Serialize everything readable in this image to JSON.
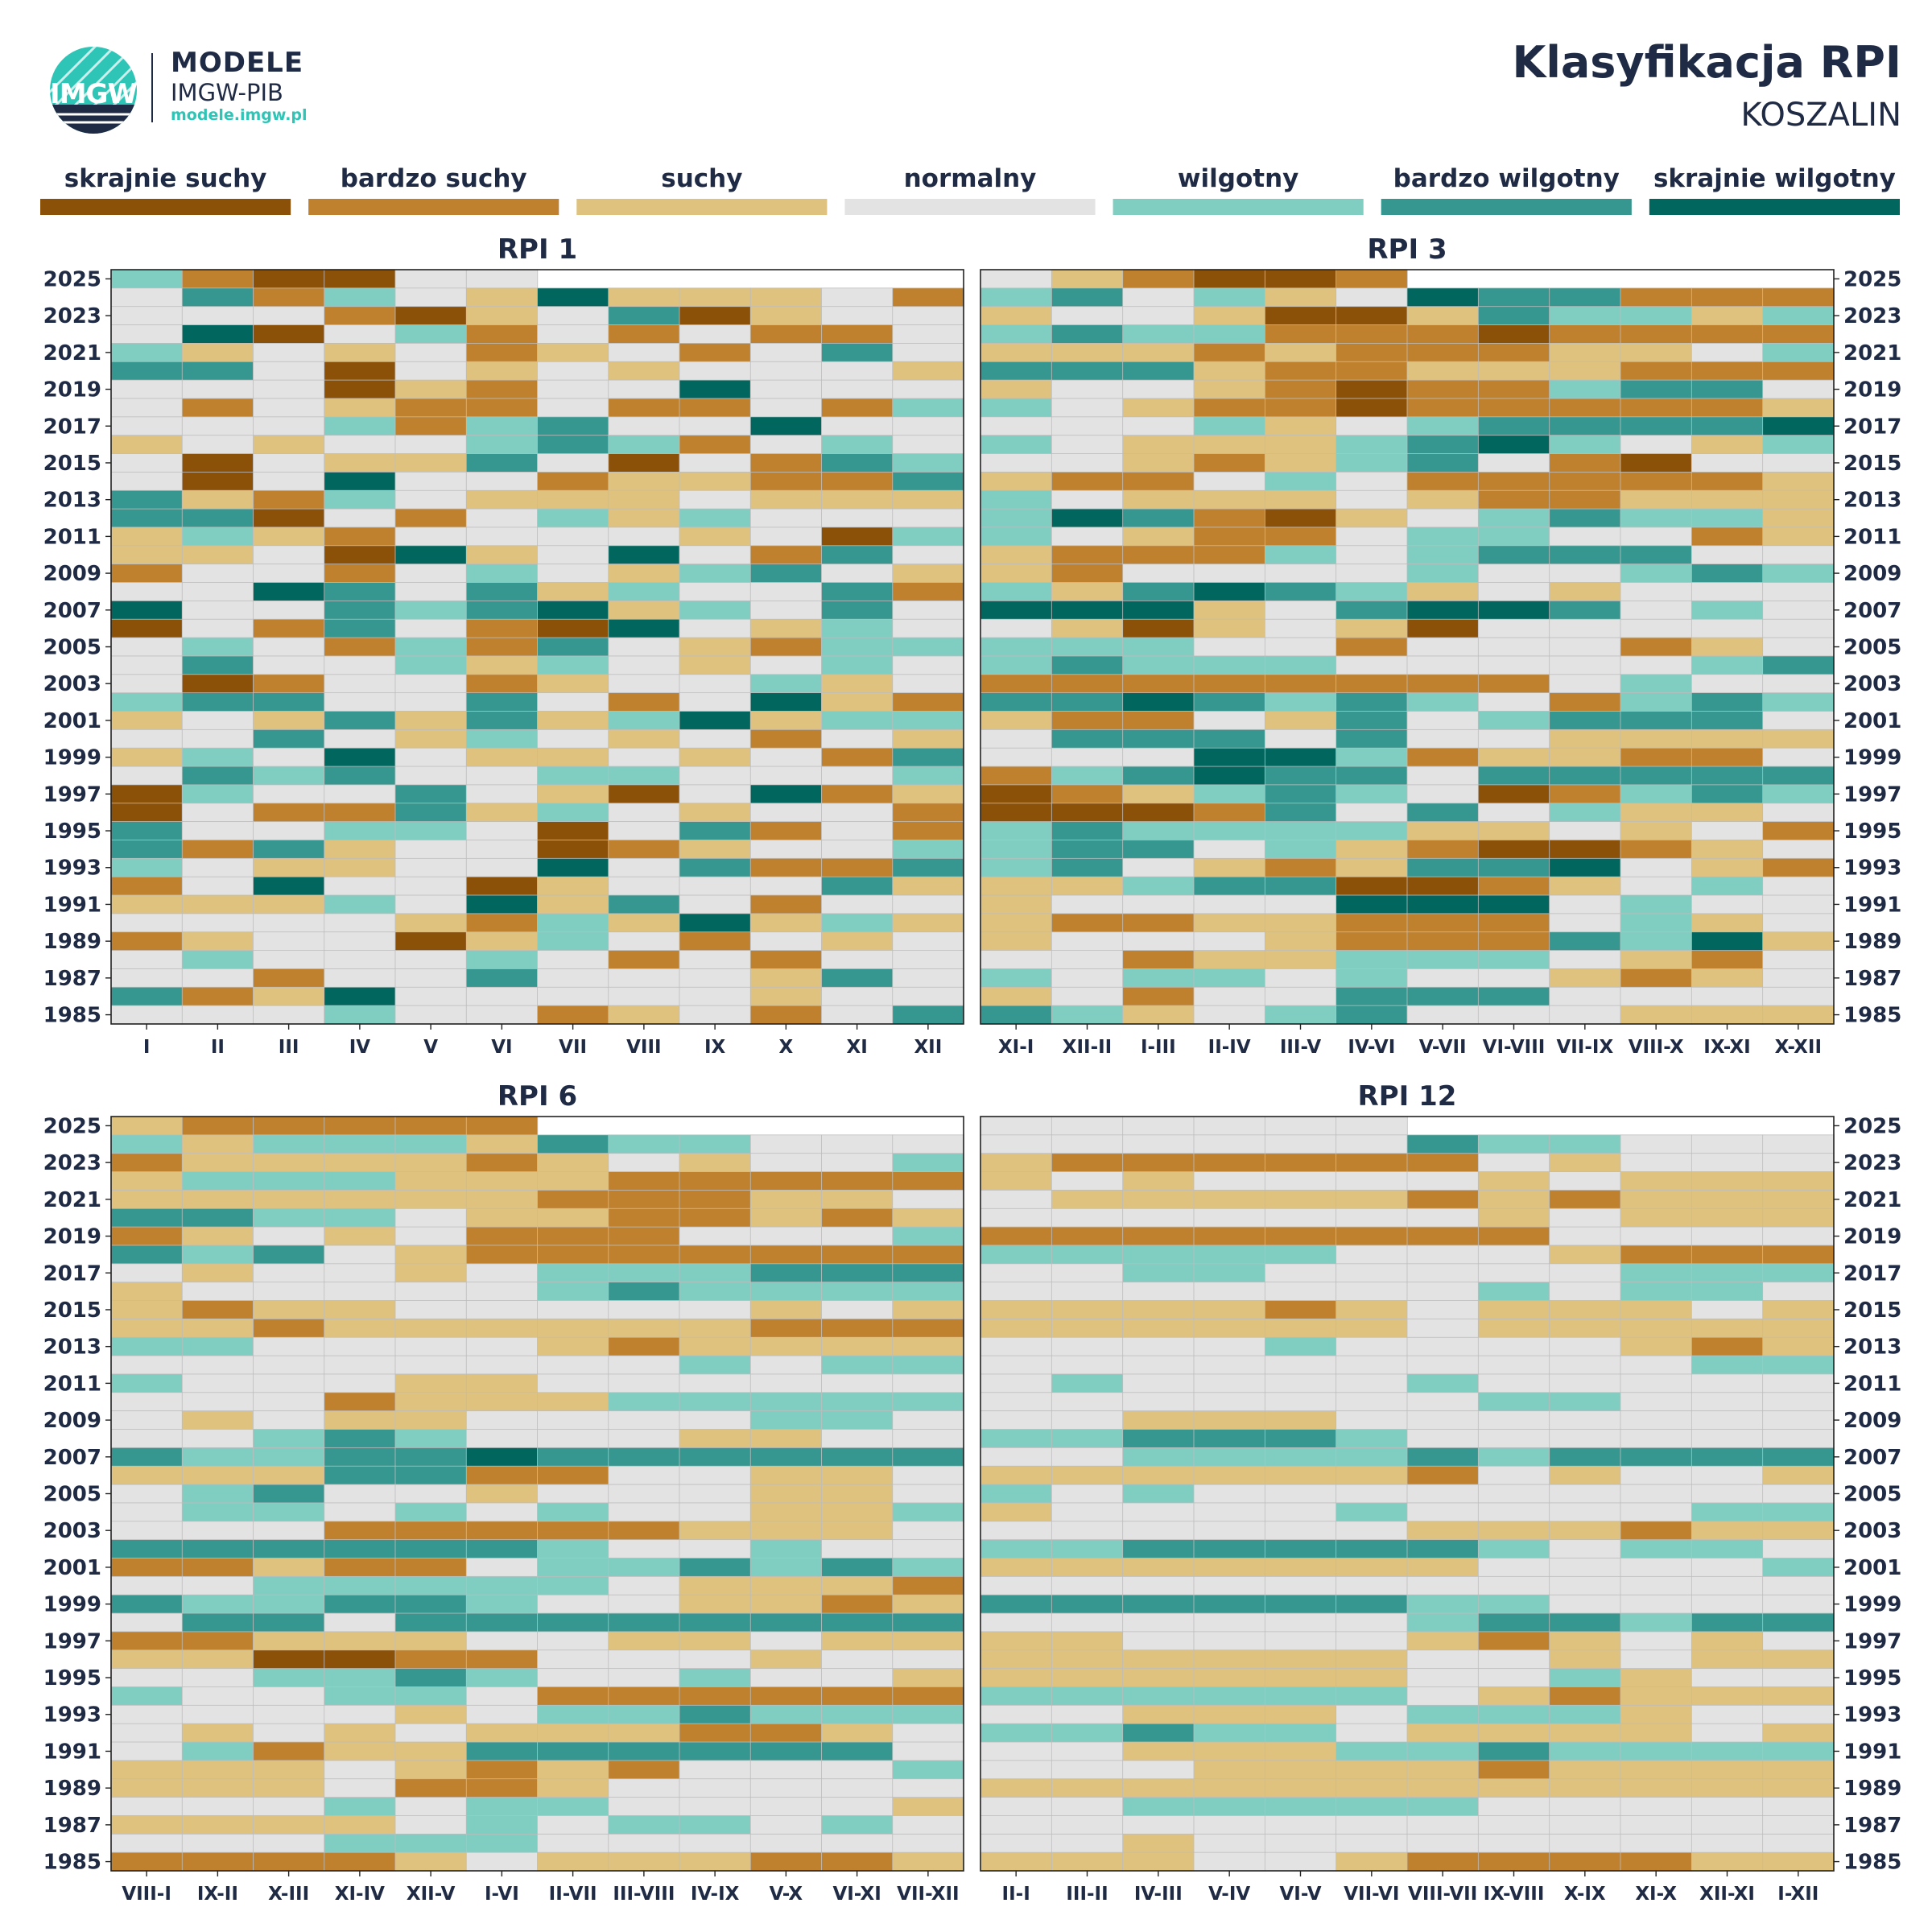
{
  "header": {
    "brand_title": "MODELE",
    "brand_subtitle": "IMGW-PIB",
    "brand_url": "modele.imgw.pl",
    "logo_text": "IMGW",
    "title": "Klasyfikacja RPI",
    "subtitle": "KOSZALIN"
  },
  "colors": {
    "text": "#1f2a44",
    "accent": "#2ec4b6",
    "grid": "#bdbdbd",
    "border": "#222222"
  },
  "legend": [
    {
      "code": "ES",
      "label": "skrajnie suchy",
      "color": "#8c5109"
    },
    {
      "code": "VS",
      "label": "bardzo suchy",
      "color": "#bf812d"
    },
    {
      "code": "S",
      "label": "suchy",
      "color": "#dfc27d"
    },
    {
      "code": "N",
      "label": "normalny",
      "color": "#e3e3e3"
    },
    {
      "code": "W",
      "label": "wilgotny",
      "color": "#80cdc1"
    },
    {
      "code": "VW",
      "label": "bardzo wilgotny",
      "color": "#35978f"
    },
    {
      "code": "EW",
      "label": "skrajnie wilgotny",
      "color": "#01665e"
    }
  ],
  "chart_data": [
    {
      "type": "heatmap",
      "title": "RPI 1",
      "years": [
        2025,
        2024,
        2023,
        2022,
        2021,
        2020,
        2019,
        2018,
        2017,
        2016,
        2015,
        2014,
        2013,
        2012,
        2011,
        2010,
        2009,
        2008,
        2007,
        2006,
        2005,
        2004,
        2003,
        2002,
        2001,
        2000,
        1999,
        1998,
        1997,
        1996,
        1995,
        1994,
        1993,
        1992,
        1991,
        1990,
        1989,
        1988,
        1987,
        1986,
        1985
      ],
      "year_labels": [
        2025,
        2023,
        2021,
        2019,
        2017,
        2015,
        2013,
        2011,
        2009,
        2007,
        2005,
        2003,
        2001,
        1999,
        1997,
        1995,
        1993,
        1991,
        1989,
        1987,
        1985
      ],
      "columns": [
        "I",
        "II",
        "III",
        "IV",
        "V",
        "VI",
        "VII",
        "VIII",
        "IX",
        "X",
        "XI",
        "XII"
      ],
      "y_axis_side": "left",
      "values": [
        "W VS ES ES N N - - - - - -",
        "N VW VS W N S EW S S S N VS",
        "N N N VS ES S N VW ES S N N",
        "N EW ES N W VS N VS N VS VS N",
        "W S N S N VS S N VS N VW N",
        "VW VW N ES N S N S N N N S",
        "N N N ES S VS N N EW N N N",
        "N VS N S VS VS N VS VS N VS W",
        "N N N W VS W VW N N EW N N",
        "S N S N N W VW W VS N W N",
        "N ES N S S VW N ES N VS VW W",
        "N ES N EW N N VS S S VS VS VW",
        "VW S VS W N S S S N S S S",
        "VW VW ES N VS N W S W N N N",
        "S W S VS N N N N S N ES W",
        "S S N ES EW S N EW N VS VW N",
        "VS N N VS N W N S W VW N S",
        "N N EW VW N VW S W N N VW VS",
        "EW N N VW W VW EW S W N VW N",
        "ES N VS VW N VS ES EW N S W N",
        "N W N VS W VS VW N S VS W W",
        "N VW N N W S W N S N W N",
        "N ES VS N N VS S N N W S N",
        "W VW VW N N VW N VS N EW S VS",
        "S N S VW S VW S W EW S W W",
        "N N VW N S W N S N VS N S",
        "S W N EW N S S N S N VS VW",
        "N VW W VW N N W W N N N W",
        "ES W N N VW N S ES N EW VS S",
        "ES N VS VS VW S W N S N N VS",
        "VW N N W W N ES N VW VS N VS",
        "VW VS VW S N N ES VS S N N W",
        "W N S S N N EW N VW VS VS VW",
        "VS N EW N N ES S N N N VW S",
        "S S S W N EW S VW N VS N N",
        "N N N N S VS W S EW S W S",
        "VS S N N ES S W N VS N S N",
        "N W N N N W N VS N VS N N",
        "N N VS N N VW N N N S VW N",
        "VW VS S EW N N N N N S N N",
        "N N N W N N VS S N VS N VW"
      ]
    },
    {
      "type": "heatmap",
      "title": "RPI 3",
      "years": [
        2025,
        2024,
        2023,
        2022,
        2021,
        2020,
        2019,
        2018,
        2017,
        2016,
        2015,
        2014,
        2013,
        2012,
        2011,
        2010,
        2009,
        2008,
        2007,
        2006,
        2005,
        2004,
        2003,
        2002,
        2001,
        2000,
        1999,
        1998,
        1997,
        1996,
        1995,
        1994,
        1993,
        1992,
        1991,
        1990,
        1989,
        1988,
        1987,
        1986,
        1985
      ],
      "year_labels": [
        2025,
        2023,
        2021,
        2019,
        2017,
        2015,
        2013,
        2011,
        2009,
        2007,
        2005,
        2003,
        2001,
        1999,
        1997,
        1995,
        1993,
        1991,
        1989,
        1987,
        1985
      ],
      "columns": [
        "XI-I",
        "XII-II",
        "I-III",
        "II-IV",
        "III-V",
        "IV-VI",
        "V-VII",
        "VI-VIII",
        "VII-IX",
        "VIII-X",
        "IX-XI",
        "X-XII"
      ],
      "y_axis_side": "right",
      "values": [
        "N S VS ES ES VS - - - - - -",
        "W VW N W S N EW VW VW VS VS VS",
        "S N N S ES ES S VW W W S W",
        "W VW W W VS VS VS ES VS VS VS VS",
        "S S S VS S VS VS VS S S N W",
        "VW VW VW S VS VS S S S VS VS VS",
        "S N N S VS ES VS VS W VW VW N",
        "W N S VS VS ES VS VS VS VS VS S",
        "N N N W S N W VW VW VW VW EW",
        "W N S S S W VW EW W N S W",
        "N N S VS S W VW N VS ES N N",
        "S VS VS N W N VS VS VS VS VS S",
        "W N S S S N S VS VS S S S",
        "W EW VW VS ES S N W VW W W S",
        "W N S VS VS N W W N N VS S",
        "S VS VS VS W N W VW VW VW N N",
        "S VS N N N N W N N W VW W",
        "W S VW EW VW W S N S N N N",
        "EW EW EW S N VW EW EW VW N W N",
        "N S ES S N S ES N N N N N",
        "W W W N N VS N N N VS S N",
        "W VW W W W N N N N N W VW",
        "VS VS VS VS VS VS VS VS N W N N",
        "VW VW EW VW W VW W N VS W VW W",
        "S VS VS N S VW N W VW VW VW N",
        "N VW VW VW N VW N N S S S S",
        "N N N EW EW W VS S S VS VS N",
        "VS W VW EW VW VW N VW VW VW VW VW",
        "ES VS S W VW W N ES VS W VW W",
        "ES ES ES VS VW N VW N W S S N",
        "W VW W W W W S S N S N VS",
        "W VW VW N W S VS ES ES VS S N",
        "W VW N S VS S VW VW EW N S VS",
        "S S W VW VW ES ES VS S N W N",
        "S N N N N EW EW EW N W N N",
        "S VS VS S S VS VS VS N W S N",
        "S N N N S VS VS VS VW W EW S",
        "N N VS S S W W W N S VS N",
        "W N W W N W N N S VS S N",
        "S N VS N N VW VW VW N N N N",
        "VW W S N W VW N N N S S S"
      ]
    },
    {
      "type": "heatmap",
      "title": "RPI 6",
      "years": [
        2025,
        2024,
        2023,
        2022,
        2021,
        2020,
        2019,
        2018,
        2017,
        2016,
        2015,
        2014,
        2013,
        2012,
        2011,
        2010,
        2009,
        2008,
        2007,
        2006,
        2005,
        2004,
        2003,
        2002,
        2001,
        2000,
        1999,
        1998,
        1997,
        1996,
        1995,
        1994,
        1993,
        1992,
        1991,
        1990,
        1989,
        1988,
        1987,
        1986,
        1985
      ],
      "year_labels": [
        2025,
        2023,
        2021,
        2019,
        2017,
        2015,
        2013,
        2011,
        2009,
        2007,
        2005,
        2003,
        2001,
        1999,
        1997,
        1995,
        1993,
        1991,
        1989,
        1987,
        1985
      ],
      "columns": [
        "VIII-I",
        "IX-II",
        "X-III",
        "XI-IV",
        "XII-V",
        "I-VI",
        "II-VII",
        "III-VIII",
        "IV-IX",
        "V-X",
        "VI-XI",
        "VII-XII"
      ],
      "y_axis_side": "left",
      "values": [
        "S VS VS VS VS VS - - - - - -",
        "W S W W W S VW W W N N N",
        "VS S S S S VS S N S N N W",
        "S W W W S S S VS VS VS VS VS",
        "S S S S S S VS VS VS S S N",
        "VW VW W W N S S VS VS S VS S",
        "VS S N S N VS VS VS N N N W",
        "VW W VW N S VS VS VS VS VS VS VS",
        "N S N N S N W W W VW VW VW",
        "S N N N N N W VW W W W W",
        "S VS S S N N N N N S N S",
        "S S VS S S S S S S VS VS VS",
        "W W N N N N S VS S S S S",
        "N N N N N N N N W N W W",
        "W N N N S S N N N N N N",
        "N N N VS S S S W W W W W",
        "N S N S S N N N N W W N",
        "N N W VW W N N N S S N N",
        "VW W W VW VW EW VW VW VW VW VW VW",
        "S S S VW VW VS VS N N S S N",
        "N W VW N N S N N N S S N",
        "N W W N W N W N N S S W",
        "N N N VS VS VS VS VS S S S N",
        "VW VW VW VW VW VW W N N W N N",
        "VS VS S VS VS N W W VW W VW W",
        "N N W W W W W N S S S VS",
        "VW W W VW VW W N N S S VS S",
        "N VW VW N VW VW VW VW VW VW VW VW",
        "VS VS S S S N N S S N S S",
        "S S ES ES VS VS N N N S N N",
        "N N W W VW W N N W N N S",
        "W N N W W N VS VS VS VS VS VS",
        "N N N N S N W W VW W W W",
        "N S N S N S S S VS VS S N",
        "N W VS S S VW VW VW VW VW VW N",
        "S S S N S VS S VS N N N W",
        "S S S N VS VS S N N N N N",
        "N N N W N W W N N N N S",
        "S S S S N W N W W N W N",
        "N N N W W W N N N N N N",
        "VS VS VS VS S N S S S VS VS S"
      ]
    },
    {
      "type": "heatmap",
      "title": "RPI 12",
      "years": [
        2025,
        2024,
        2023,
        2022,
        2021,
        2020,
        2019,
        2018,
        2017,
        2016,
        2015,
        2014,
        2013,
        2012,
        2011,
        2010,
        2009,
        2008,
        2007,
        2006,
        2005,
        2004,
        2003,
        2002,
        2001,
        2000,
        1999,
        1998,
        1997,
        1996,
        1995,
        1994,
        1993,
        1992,
        1991,
        1990,
        1989,
        1988,
        1987,
        1986,
        1985
      ],
      "year_labels": [
        2025,
        2023,
        2021,
        2019,
        2017,
        2015,
        2013,
        2011,
        2009,
        2007,
        2005,
        2003,
        2001,
        1999,
        1997,
        1995,
        1993,
        1991,
        1989,
        1987,
        1985
      ],
      "columns": [
        "II-I",
        "III-II",
        "IV-III",
        "V-IV",
        "VI-V",
        "VII-VI",
        "VIII-VII",
        "IX-VIII",
        "X-IX",
        "XI-X",
        "XII-XI",
        "I-XII"
      ],
      "y_axis_side": "right",
      "values": [
        "N N N N N N - - - - - -",
        "N N N N N N VW W W N N N",
        "S VS VS VS VS VS VS N S N N N",
        "S N S N N N N S N S S S",
        "N S S S S S VS S VS S S S",
        "N N N N N N N S N S S S",
        "VS VS VS VS VS VS VS VS N N N N",
        "W W W W W N N N S VS VS VS",
        "N N W W N N N N N W W W",
        "N N N N N N N W N W W N",
        "S S S S VS S N S S S N S",
        "S S S S S S N S S S S S",
        "N N N N W N N N N S VS S",
        "N N N N N N N N N N W W",
        "N W N N N N W N N N N N",
        "N N N N N N N W W N N N",
        "N N S S S N N N N N N N",
        "W W VW VW VW W N N N N N N",
        "N N W W W W VW W VW VW VW VW",
        "S S S S S S VS N S N N S",
        "W N W N N N N N N N N N",
        "S N N N N W N N N N W W",
        "N N N N N N S S S VS S S",
        "W W VW VW VW VW VW W N W W N",
        "S S S S S S S N N N N W",
        "N N N N N N N N N N N N",
        "VW VW VW VW VW VW W W N N N N",
        "N N N N N N W VW VW W VW VW",
        "S S N N N N S VS S N S N",
        "S S S S S S N N S N S S",
        "S S S S S S N N W S N N",
        "W W W W W W N S VS S S S",
        "N N S S S N W W W S N N",
        "W W VW W W N S S S S N S",
        "N N S S S W W VW W W W W",
        "N N N S S S S VS S S S S",
        "S S S S S S S S S S S S",
        "N N W W W W W N N N N N",
        "N N N N N N N N N N N N",
        "N N S N N N N N N N N N",
        "S S S N N S VS VS VS VS S S"
      ]
    }
  ]
}
